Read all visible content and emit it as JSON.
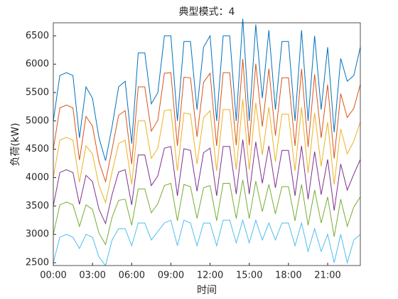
{
  "chart_data": {
    "type": "line",
    "title": "典型模式：4",
    "xlabel": "时间",
    "ylabel": "负荷(kW)",
    "x": [
      0,
      0.5,
      1,
      1.5,
      2,
      2.5,
      3,
      3.5,
      4,
      4.5,
      5,
      5.5,
      6,
      6.5,
      7,
      7.5,
      8,
      8.5,
      9,
      9.5,
      10,
      10.5,
      11,
      11.5,
      12,
      12.5,
      13,
      13.5,
      14,
      14.5,
      15,
      15.5,
      16,
      16.5,
      17,
      17.5,
      18,
      18.5,
      19,
      19.5,
      20,
      20.5,
      21,
      21.5,
      22,
      22.5,
      23,
      23.5
    ],
    "xlim": [
      0,
      23.5
    ],
    "xticks": [
      {
        "value": 0,
        "label": "00:00"
      },
      {
        "value": 3,
        "label": "03:00"
      },
      {
        "value": 6,
        "label": "06:00"
      },
      {
        "value": 9,
        "label": "09:00"
      },
      {
        "value": 12,
        "label": "12:00"
      },
      {
        "value": 15,
        "label": "15:00"
      },
      {
        "value": 18,
        "label": "18:00"
      },
      {
        "value": 21,
        "label": "21:00"
      }
    ],
    "ylim": [
      2450,
      6730
    ],
    "yticks": [
      2500,
      3000,
      3500,
      4000,
      4500,
      5000,
      5500,
      6000,
      6500
    ],
    "series": [
      {
        "color": "#0072BD",
        "values": [
          5000,
          5800,
          5850,
          5800,
          4700,
          5600,
          5400,
          4700,
          4300,
          4900,
          5600,
          5700,
          4600,
          6200,
          6200,
          5300,
          5500,
          6500,
          6500,
          5000,
          6400,
          6400,
          5200,
          6300,
          6500,
          5000,
          6500,
          6500,
          5000,
          6800,
          5000,
          6700,
          5400,
          6600,
          5200,
          6400,
          6400,
          5000,
          6600,
          5000,
          6500,
          5200,
          6300,
          4800,
          6100,
          5700,
          5800,
          6300
        ]
      },
      {
        "color": "#D95319",
        "values": [
          4500,
          5230,
          5280,
          5230,
          4310,
          5080,
          4910,
          4280,
          3930,
          4500,
          5100,
          5180,
          4240,
          5600,
          5600,
          4820,
          5010,
          5840,
          5850,
          4560,
          5770,
          5760,
          4720,
          5680,
          5840,
          4560,
          5850,
          5850,
          4570,
          6090,
          4570,
          6010,
          4900,
          5920,
          4740,
          5760,
          5760,
          4560,
          5920,
          4540,
          5820,
          4700,
          5640,
          4340,
          5480,
          5060,
          5220,
          5640
        ]
      },
      {
        "color": "#EDB120",
        "values": [
          4000,
          4660,
          4710,
          4660,
          3920,
          4560,
          4420,
          3860,
          3560,
          4100,
          4600,
          4660,
          3880,
          5000,
          5000,
          4340,
          4520,
          5180,
          5200,
          4120,
          5140,
          5120,
          4240,
          5060,
          5180,
          4120,
          5200,
          5200,
          4140,
          5380,
          4140,
          5320,
          4400,
          5240,
          4280,
          5120,
          5120,
          4120,
          5240,
          4080,
          5140,
          4200,
          4980,
          3880,
          4860,
          4420,
          4640,
          4980
        ]
      },
      {
        "color": "#7E2F8E",
        "values": [
          3500,
          4090,
          4140,
          4090,
          3530,
          4040,
          3930,
          3440,
          3190,
          3700,
          4100,
          4140,
          3520,
          4400,
          4400,
          3860,
          4030,
          4520,
          4550,
          3680,
          4510,
          4480,
          3760,
          4440,
          4520,
          3680,
          4550,
          4550,
          3710,
          4670,
          3710,
          4630,
          3900,
          4560,
          3820,
          4480,
          4480,
          3680,
          4560,
          3620,
          4460,
          3700,
          4320,
          3420,
          4240,
          3780,
          4060,
          4320
        ]
      },
      {
        "color": "#77AC30",
        "values": [
          3000,
          3520,
          3570,
          3520,
          3140,
          3520,
          3440,
          3020,
          2820,
          3300,
          3600,
          3620,
          3160,
          3800,
          3800,
          3380,
          3540,
          3860,
          3900,
          3240,
          3880,
          3840,
          3280,
          3820,
          3860,
          3240,
          3900,
          3900,
          3280,
          3960,
          3280,
          3940,
          3400,
          3880,
          3360,
          3840,
          3840,
          3240,
          3880,
          3160,
          3780,
          3200,
          3660,
          2960,
          3620,
          3140,
          3480,
          3660
        ]
      },
      {
        "color": "#4DBEEE",
        "values": [
          2500,
          2950,
          3000,
          2950,
          2750,
          3000,
          2950,
          2600,
          2450,
          2900,
          3100,
          3100,
          2800,
          3200,
          3200,
          2900,
          3050,
          3200,
          3250,
          2800,
          3250,
          3200,
          2800,
          3200,
          3200,
          2800,
          3250,
          3250,
          2850,
          3250,
          2850,
          3250,
          2900,
          3200,
          2900,
          3200,
          3200,
          2800,
          3200,
          2700,
          3100,
          2700,
          3000,
          2500,
          3000,
          2500,
          2900,
          3000
        ]
      }
    ]
  }
}
